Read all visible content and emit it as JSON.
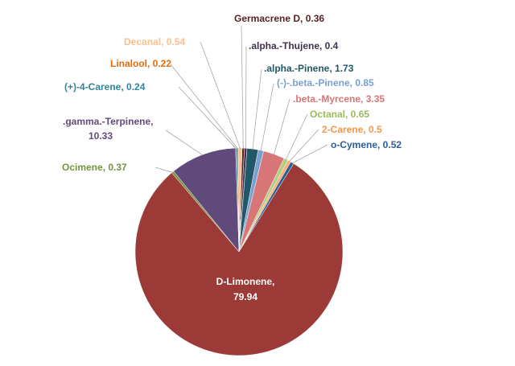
{
  "chart_data": {
    "type": "pie",
    "title": "",
    "slices": [
      {
        "name": "Germacrene D",
        "value": 0.36,
        "label": "Germacrene D, 0.36",
        "color": "#5b1f1f",
        "label_color": "#5b1f1f"
      },
      {
        "name": ".alpha.-Thujene",
        "value": 0.4,
        "label": ".alpha.-Thujene, 0.4",
        "color": "#403152",
        "label_color": "#403152"
      },
      {
        "name": ".alpha.-Pinene",
        "value": 1.73,
        "label": ".alpha.-Pinene, 1.73",
        "color": "#215867",
        "label_color": "#215867"
      },
      {
        "name": "(-)-.beta.-Pinene",
        "value": 0.85,
        "label": "(-)-.beta.-Pinene, 0.85",
        "color": "#7aa0d2",
        "label_color": "#7aa0d2"
      },
      {
        "name": ".beta.-Myrcene",
        "value": 3.35,
        "label": ".beta.-Myrcene, 3.35",
        "color": "#d87577",
        "label_color": "#d87577"
      },
      {
        "name": "Octanal",
        "value": 0.65,
        "label": "Octanal, 0.65",
        "color": "#b5cd83",
        "label_color": "#9bbb59"
      },
      {
        "name": "2-Carene",
        "value": 0.5,
        "label": "2-Carene, 0.5",
        "color": "#f9b074",
        "label_color": "#f79646"
      },
      {
        "name": "o-Cymene",
        "value": 0.52,
        "label": "o-Cymene, 0.52",
        "color": "#2b5d99",
        "label_color": "#2b5d99"
      },
      {
        "name": "D-Limonene",
        "value": 79.94,
        "label_name": "D-Limonene,",
        "label_value": "79.94",
        "color": "#9c3a37",
        "label_color": "#ffffff"
      },
      {
        "name": "Ocimene",
        "value": 0.37,
        "label": "Ocimene, 0.37",
        "color": "#77933c",
        "label_color": "#77933c"
      },
      {
        "name": ".gamma.-Terpinene",
        "value": 10.33,
        "label_name": ".gamma.-Terpinene,",
        "label_value": "10.33",
        "color": "#604a7b",
        "label_color": "#604a7b"
      },
      {
        "name": "(+)-4-Carene",
        "value": 0.24,
        "label": "(+)-4-Carene, 0.24",
        "color": "#31849b",
        "label_color": "#31849b"
      },
      {
        "name": "Linalool",
        "value": 0.22,
        "label": "Linalool, 0.22",
        "color": "#e46c0a",
        "label_color": "#e46c0a"
      },
      {
        "name": "Decanal",
        "value": 0.54,
        "label": "Decanal, 0.54",
        "color": "#fac090",
        "label_color": "#fac090"
      }
    ],
    "legend": "none",
    "data_labels": "outside with leader lines"
  }
}
